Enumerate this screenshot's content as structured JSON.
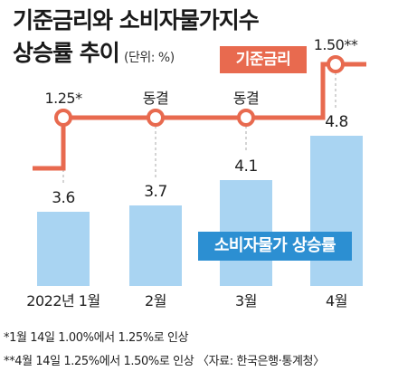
{
  "header": {
    "title_line1": "기준금리와 소비자물가지수",
    "title_line2": "상승률 추이",
    "unit": "(단위: %)"
  },
  "footnotes": [
    "*1월 14일 1.00%에서 1.25%로 인상",
    "**4월 14일 1.25%에서 1.50%로 인상 〈자료: 한국은행·통계청〉"
  ],
  "chart_data": {
    "type": "bar",
    "categories": [
      "2022년 1월",
      "2월",
      "3월",
      "4월"
    ],
    "series": [
      {
        "name": "소비자물가 상승률",
        "values": [
          3.6,
          3.7,
          4.1,
          4.8
        ],
        "value_labels": [
          "3.6",
          "3.7",
          "4.1",
          "4.8"
        ],
        "color": "#a9d4f2"
      },
      {
        "name": "기준금리",
        "type": "step-line",
        "values": [
          1.25,
          1.25,
          1.25,
          1.5
        ],
        "point_labels": [
          "1.25*",
          "동결",
          "동결",
          "1.50**"
        ],
        "color": "#e86a4f"
      }
    ],
    "ylim": [
      0,
      6
    ],
    "grid": false
  }
}
